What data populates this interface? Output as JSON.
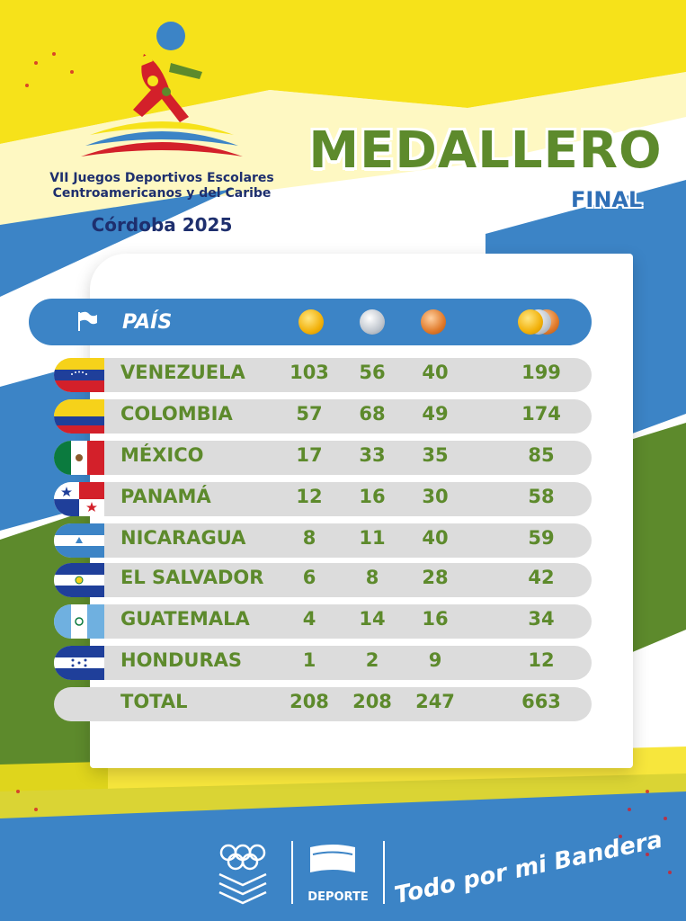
{
  "event": {
    "name_line1": "VII Juegos Deportivos Escolares",
    "name_line2": "Centroamericanos y del Caribe",
    "city": "Córdoba 2025"
  },
  "title": {
    "main": "MEDALLERO",
    "sub": "FINAL"
  },
  "table": {
    "header": {
      "country": "PAÍS"
    },
    "icons": {
      "flag": "flag-icon",
      "gold": "gold-medal-icon",
      "silver": "silver-medal-icon",
      "bronze": "bronze-medal-icon",
      "total": "medals-total-icon"
    },
    "rows": [
      {
        "country": "VENEZUELA",
        "gold": "103",
        "silver": "56",
        "bronze": "40",
        "total": "199"
      },
      {
        "country": "COLOMBIA",
        "gold": "57",
        "silver": "68",
        "bronze": "49",
        "total": "174"
      },
      {
        "country": "MÉXICO",
        "gold": "17",
        "silver": "33",
        "bronze": "35",
        "total": "85"
      },
      {
        "country": "PANAMÁ",
        "gold": "12",
        "silver": "16",
        "bronze": "30",
        "total": "58"
      },
      {
        "country": "NICARAGUA",
        "gold": "8",
        "silver": "11",
        "bronze": "40",
        "total": "59"
      },
      {
        "country": "EL SALVADOR",
        "gold": "6",
        "silver": "8",
        "bronze": "28",
        "total": "42"
      },
      {
        "country": "GUATEMALA",
        "gold": "4",
        "silver": "14",
        "bronze": "16",
        "total": "34"
      },
      {
        "country": "HONDURAS",
        "gold": "1",
        "silver": "2",
        "bronze": "9",
        "total": "12"
      }
    ],
    "totals": {
      "label": "TOTAL",
      "gold": "208",
      "silver": "208",
      "bronze": "247",
      "total": "663"
    }
  },
  "footer": {
    "ministry_label": "DEPORTE",
    "slogan": "Todo por mi Bandera"
  },
  "colors": {
    "yellow": "#f6e21a",
    "blue": "#3c84c6",
    "green": "#5d8a2c",
    "navy": "#1e2f6e"
  }
}
